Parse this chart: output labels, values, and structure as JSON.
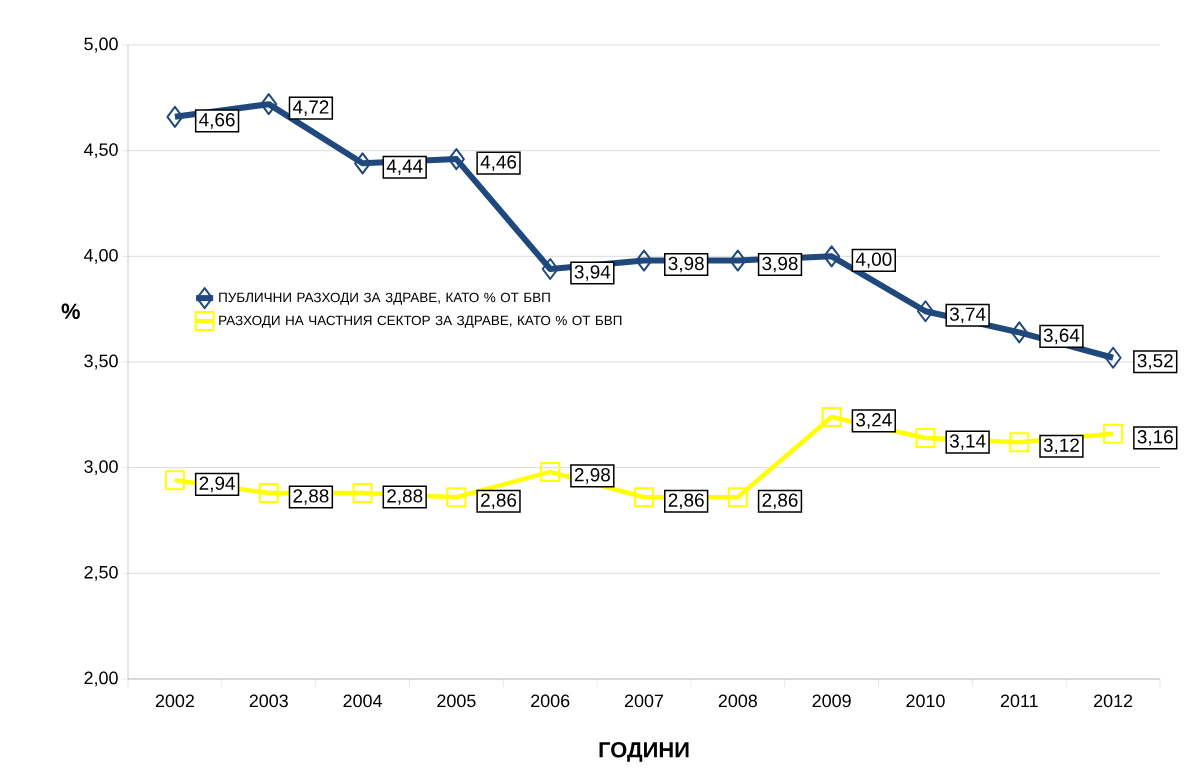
{
  "chart_data": {
    "type": "line",
    "xlabel": "ГОДИНИ",
    "ylabel": "%",
    "categories": [
      "2002",
      "2003",
      "2004",
      "2005",
      "2006",
      "2007",
      "2008",
      "2009",
      "2010",
      "2011",
      "2012"
    ],
    "ylim": [
      2,
      5
    ],
    "yticks": [
      {
        "value": 2,
        "label": "2,00"
      },
      {
        "value": 2.5,
        "label": "2,50"
      },
      {
        "value": 3,
        "label": "3,00"
      },
      {
        "value": 3.5,
        "label": "3,50"
      },
      {
        "value": 4,
        "label": "4,00"
      },
      {
        "value": 4.5,
        "label": "4,50"
      },
      {
        "value": 5,
        "label": "5,00"
      }
    ],
    "grid": "y",
    "legend": "left",
    "line_style": "solid",
    "series": [
      {
        "name": "ПУБЛИЧНИ РАЗХОДИ ЗА ЗДРАВЕ, КАТО % ОТ БВП",
        "color": "#1f497d",
        "marker": "diamond",
        "values": [
          4.66,
          4.72,
          4.44,
          4.46,
          3.94,
          3.98,
          3.98,
          4.0,
          3.74,
          3.64,
          3.52
        ],
        "value_labels": [
          "4,66",
          "4,72",
          "4,44",
          "4,46",
          "3,94",
          "3,98",
          "3,98",
          "4,00",
          "3,74",
          "3,64",
          "3,52"
        ]
      },
      {
        "name": "РАЗХОДИ НА ЧАСТНИЯ СЕКТОР ЗА ЗДРАВЕ, КАТО % ОТ БВП",
        "color": "#ffff00",
        "marker": "square",
        "values": [
          2.94,
          2.88,
          2.88,
          2.86,
          2.98,
          2.86,
          2.86,
          3.24,
          3.14,
          3.12,
          3.16
        ],
        "value_labels": [
          "2,94",
          "2,88",
          "2,88",
          "2,86",
          "2,98",
          "2,86",
          "2,86",
          "3,24",
          "3,14",
          "3,12",
          "3,16"
        ]
      }
    ]
  }
}
